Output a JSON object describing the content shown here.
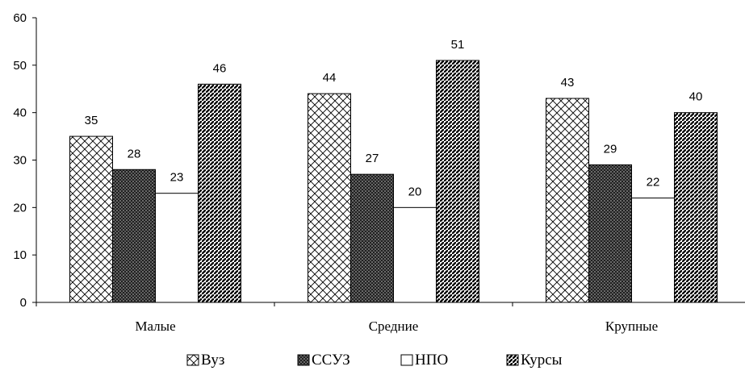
{
  "chart_data": {
    "type": "bar",
    "categories": [
      "Малые",
      "Средние",
      "Крупные"
    ],
    "series": [
      {
        "name": "Вуз",
        "values": [
          35,
          44,
          43
        ],
        "pattern": "crosshatch"
      },
      {
        "name": "ССУЗ",
        "values": [
          28,
          27,
          29
        ],
        "pattern": "dense-dark"
      },
      {
        "name": "НПО",
        "values": [
          23,
          20,
          22
        ],
        "pattern": "plain"
      },
      {
        "name": "Курсы",
        "values": [
          46,
          51,
          40
        ],
        "pattern": "diagonal"
      }
    ],
    "ylim": [
      0,
      60
    ],
    "yticks": [
      "0",
      "10",
      "20",
      "30",
      "40",
      "50",
      "60"
    ],
    "grid": false,
    "legend_position": "bottom",
    "data_labels": true
  }
}
